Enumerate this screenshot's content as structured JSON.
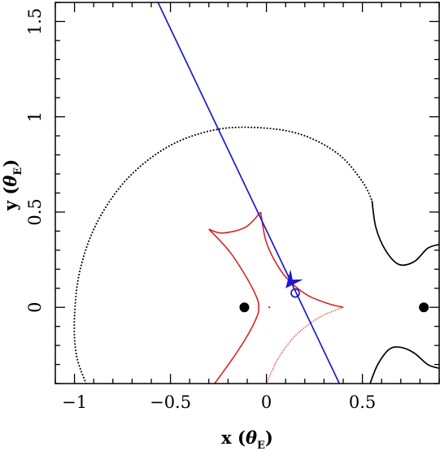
{
  "chart_data": {
    "type": "scatter",
    "title": "",
    "xlabel": "x (θE)",
    "ylabel": "y (θE)",
    "xlabel_parts": {
      "main": "x (",
      "symbol": "θ",
      "sub": "E",
      "close": ")"
    },
    "ylabel_parts": {
      "main": "y (",
      "symbol": "θ",
      "sub": "E",
      "close": ")"
    },
    "xlim": [
      -1.1,
      0.9
    ],
    "ylim": [
      -0.4,
      1.6
    ],
    "grid": false,
    "x_ticks": [
      {
        "value": -1,
        "label": "−1"
      },
      {
        "value": -0.5,
        "label": "−0.5"
      },
      {
        "value": 0,
        "label": "0"
      },
      {
        "value": 0.5,
        "label": "0.5"
      }
    ],
    "y_ticks": [
      {
        "value": 0,
        "label": "0"
      },
      {
        "value": 0.5,
        "label": "0.5"
      },
      {
        "value": 1,
        "label": "1"
      },
      {
        "value": 1.5,
        "label": "1.5"
      }
    ],
    "colors": {
      "caustic": "#dd2222",
      "trajectory": "#1a1acc",
      "critical": "#000000",
      "lens": "#000000"
    },
    "lens_masses": [
      {
        "x": -0.115,
        "y": 0
      },
      {
        "x": 0.82,
        "y": 0
      }
    ],
    "source_position": {
      "x": 0.15,
      "y": 0.075
    },
    "trajectory_line": [
      {
        "x": -0.565,
        "y": 1.6
      },
      {
        "x": 0.38,
        "y": -0.4
      }
    ],
    "trajectory_arrow": {
      "tip": {
        "x": 0.1,
        "y": 0.1
      },
      "from": {
        "x": 0.18,
        "y": 0.2
      }
    },
    "critical_curve_dotted": [
      {
        "x": -0.94,
        "y": -0.4
      },
      {
        "x": -0.99,
        "y": -0.25
      },
      {
        "x": -1.0,
        "y": -0.05
      },
      {
        "x": -0.97,
        "y": 0.2
      },
      {
        "x": -0.88,
        "y": 0.45
      },
      {
        "x": -0.72,
        "y": 0.68
      },
      {
        "x": -0.5,
        "y": 0.85
      },
      {
        "x": -0.25,
        "y": 0.935
      },
      {
        "x": 0.0,
        "y": 0.94
      },
      {
        "x": 0.2,
        "y": 0.9
      },
      {
        "x": 0.38,
        "y": 0.8
      },
      {
        "x": 0.5,
        "y": 0.66
      },
      {
        "x": 0.55,
        "y": 0.56
      }
    ],
    "critical_curve_solid_upper": [
      {
        "x": 0.55,
        "y": 0.56
      },
      {
        "x": 0.57,
        "y": 0.42
      },
      {
        "x": 0.62,
        "y": 0.3
      },
      {
        "x": 0.69,
        "y": 0.225
      },
      {
        "x": 0.77,
        "y": 0.24
      },
      {
        "x": 0.84,
        "y": 0.31
      },
      {
        "x": 0.9,
        "y": 0.33
      }
    ],
    "critical_curve_solid_lower": [
      {
        "x": 0.54,
        "y": -0.4
      },
      {
        "x": 0.58,
        "y": -0.3
      },
      {
        "x": 0.64,
        "y": -0.22
      },
      {
        "x": 0.7,
        "y": -0.21
      },
      {
        "x": 0.77,
        "y": -0.24
      },
      {
        "x": 0.84,
        "y": -0.3
      },
      {
        "x": 0.9,
        "y": -0.32
      }
    ],
    "caustic": [
      {
        "x": -0.03,
        "y": 0.5
      },
      {
        "x": 0.0,
        "y": 0.34
      },
      {
        "x": 0.07,
        "y": 0.2
      },
      {
        "x": 0.14,
        "y": 0.12
      },
      {
        "x": 0.22,
        "y": 0.06
      },
      {
        "x": 0.32,
        "y": 0.02
      },
      {
        "x": 0.4,
        "y": 0.0
      },
      {
        "x": 0.3,
        "y": -0.04
      },
      {
        "x": 0.22,
        "y": -0.09
      },
      {
        "x": 0.14,
        "y": -0.16
      },
      {
        "x": 0.06,
        "y": -0.27
      },
      {
        "x": 0.0,
        "y": -0.4
      }
    ],
    "caustic_left": [
      {
        "x": -0.03,
        "y": 0.5
      },
      {
        "x": -0.11,
        "y": 0.42
      },
      {
        "x": -0.23,
        "y": 0.39
      },
      {
        "x": -0.3,
        "y": 0.41
      },
      {
        "x": -0.19,
        "y": 0.29
      },
      {
        "x": -0.1,
        "y": 0.15
      },
      {
        "x": -0.05,
        "y": 0.05
      },
      {
        "x": -0.04,
        "y": 0.0
      },
      {
        "x": -0.05,
        "y": -0.05
      },
      {
        "x": -0.1,
        "y": -0.15
      },
      {
        "x": -0.17,
        "y": -0.26
      },
      {
        "x": -0.27,
        "y": -0.4
      }
    ],
    "caustic_dot": {
      "x": 0.015,
      "y": 0.0
    }
  }
}
